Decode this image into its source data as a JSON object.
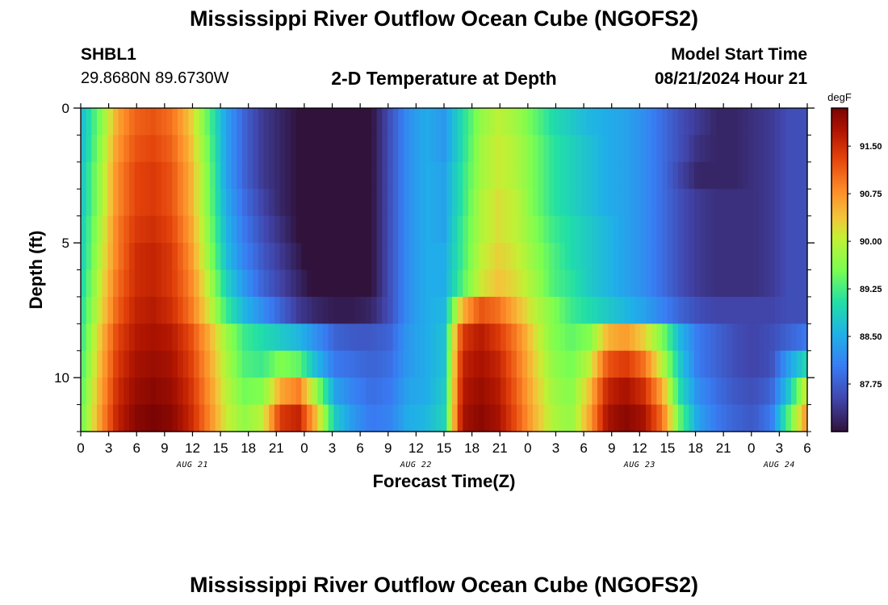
{
  "header": {
    "title": "Mississippi River Outflow Ocean Cube (NGOFS2)",
    "station_id": "SHBL1",
    "station_coords": "29.8680N  89.6730W",
    "subtitle": "2-D Temperature at Depth",
    "model_start_label": "Model Start Time",
    "model_start_value": "08/21/2024 Hour 21"
  },
  "footer": {
    "title": "Mississippi River Outflow Ocean Cube (NGOFS2)"
  },
  "chart_data": {
    "type": "heatmap",
    "xlabel": "Forecast Time(Z)",
    "ylabel": "Depth (ft)",
    "x_ticks": [
      "0",
      "3",
      "6",
      "9",
      "12",
      "15",
      "18",
      "21",
      "0",
      "3",
      "6",
      "9",
      "12",
      "15",
      "18",
      "21",
      "0",
      "3",
      "6",
      "9",
      "12",
      "15",
      "18",
      "21",
      "0",
      "3",
      "6"
    ],
    "date_labels": [
      "AUG 21",
      "AUG 22",
      "AUG 23",
      "AUG 24"
    ],
    "x_range_hours": [
      0,
      78
    ],
    "y_ticks": [
      "0",
      "5",
      "10"
    ],
    "y_range": [
      0,
      12
    ],
    "colorbar": {
      "unit": "degF",
      "ticks": [
        "91.50",
        "90.75",
        "90.00",
        "89.25",
        "88.50",
        "87.75"
      ],
      "range": [
        87.0,
        92.1
      ]
    },
    "layers": [
      {
        "depth_ft": 0.5,
        "values": [
          88.6,
          89.5,
          90.6,
          91.1,
          91.2,
          91.0,
          90.4,
          89.4,
          88.4,
          87.8,
          87.4,
          87.2,
          87.0,
          86.7,
          86.6,
          86.7,
          87.0,
          87.6,
          88.2,
          88.5,
          88.3,
          89.0,
          89.7,
          90.0,
          89.8,
          89.4,
          89.0,
          88.8,
          88.6,
          88.5,
          88.4,
          88.2,
          87.9,
          87.6,
          87.4,
          87.2,
          87.2,
          87.3,
          87.4,
          87.6,
          87.6
        ]
      },
      {
        "depth_ft": 1.5,
        "values": [
          88.6,
          89.6,
          90.7,
          91.2,
          91.3,
          91.1,
          90.5,
          89.5,
          88.4,
          87.8,
          87.4,
          87.2,
          87.0,
          86.7,
          86.6,
          86.7,
          87.0,
          87.6,
          88.2,
          88.5,
          88.3,
          89.0,
          89.8,
          90.1,
          89.9,
          89.5,
          89.1,
          88.9,
          88.7,
          88.5,
          88.4,
          88.2,
          87.9,
          87.6,
          87.3,
          87.2,
          87.2,
          87.3,
          87.4,
          87.6,
          87.6
        ]
      },
      {
        "depth_ft": 2.5,
        "values": [
          88.7,
          89.7,
          90.8,
          91.3,
          91.4,
          91.2,
          90.6,
          89.6,
          88.4,
          87.8,
          87.4,
          87.2,
          87.0,
          86.7,
          86.6,
          86.7,
          87.0,
          87.6,
          88.2,
          88.5,
          88.4,
          89.1,
          89.8,
          90.1,
          89.9,
          89.5,
          89.1,
          88.9,
          88.7,
          88.5,
          88.4,
          88.2,
          87.9,
          87.5,
          87.2,
          87.2,
          87.2,
          87.3,
          87.4,
          87.6,
          87.6
        ]
      },
      {
        "depth_ft": 3.5,
        "values": [
          88.7,
          89.7,
          90.8,
          91.3,
          91.4,
          91.2,
          90.6,
          89.6,
          88.5,
          87.9,
          87.5,
          87.2,
          87.0,
          86.8,
          86.6,
          86.7,
          87.0,
          87.6,
          88.2,
          88.5,
          88.4,
          89.1,
          89.9,
          90.2,
          90.0,
          89.5,
          89.1,
          88.9,
          88.7,
          88.5,
          88.4,
          88.2,
          87.9,
          87.6,
          87.4,
          87.3,
          87.3,
          87.3,
          87.4,
          87.6,
          87.6
        ]
      },
      {
        "depth_ft": 4.5,
        "values": [
          88.8,
          89.8,
          90.9,
          91.4,
          91.5,
          91.3,
          90.7,
          89.7,
          88.6,
          88.0,
          87.6,
          87.3,
          87.0,
          86.8,
          86.6,
          86.7,
          87.0,
          87.6,
          88.2,
          88.5,
          88.4,
          89.2,
          89.9,
          90.2,
          90.0,
          89.6,
          89.2,
          89.0,
          88.8,
          88.6,
          88.4,
          88.2,
          87.9,
          87.6,
          87.4,
          87.3,
          87.3,
          87.3,
          87.4,
          87.6,
          87.6
        ]
      },
      {
        "depth_ft": 5.5,
        "values": [
          88.8,
          89.9,
          90.9,
          91.5,
          91.6,
          91.4,
          90.8,
          89.8,
          88.7,
          88.1,
          87.7,
          87.4,
          87.1,
          86.8,
          86.6,
          86.7,
          87.0,
          87.6,
          88.2,
          88.5,
          88.5,
          89.2,
          90.0,
          90.3,
          90.1,
          89.7,
          89.3,
          89.0,
          88.8,
          88.6,
          88.4,
          88.2,
          87.9,
          87.6,
          87.4,
          87.3,
          87.3,
          87.3,
          87.4,
          87.6,
          87.6
        ]
      },
      {
        "depth_ft": 6.5,
        "values": [
          88.9,
          90.0,
          91.0,
          91.5,
          91.6,
          91.4,
          90.9,
          90.0,
          88.9,
          88.3,
          87.8,
          87.5,
          87.2,
          86.9,
          86.7,
          86.8,
          87.0,
          87.6,
          88.2,
          88.5,
          88.5,
          89.3,
          90.1,
          90.4,
          90.2,
          89.8,
          89.3,
          89.1,
          88.8,
          88.6,
          88.4,
          88.2,
          87.9,
          87.6,
          87.4,
          87.3,
          87.3,
          87.3,
          87.4,
          87.6,
          87.6
        ]
      },
      {
        "depth_ft": 7.5,
        "values": [
          89.0,
          90.1,
          91.1,
          91.6,
          91.7,
          91.5,
          91.0,
          90.2,
          89.2,
          88.6,
          88.2,
          87.8,
          87.4,
          87.2,
          87.1,
          87.1,
          87.2,
          87.6,
          88.2,
          88.5,
          88.6,
          90.5,
          91.2,
          91.0,
          90.5,
          90.0,
          89.6,
          89.2,
          89.0,
          88.8,
          88.6,
          88.4,
          88.1,
          87.8,
          87.6,
          87.5,
          87.5,
          87.5,
          87.5,
          87.6,
          87.6
        ]
      },
      {
        "depth_ft": 8.5,
        "values": [
          89.1,
          90.3,
          91.3,
          91.7,
          91.8,
          91.7,
          91.3,
          90.6,
          89.8,
          89.2,
          89.0,
          88.8,
          88.6,
          88.2,
          87.8,
          87.7,
          87.7,
          87.8,
          88.3,
          88.5,
          88.7,
          91.4,
          91.7,
          91.4,
          90.9,
          90.2,
          89.6,
          89.4,
          89.6,
          90.5,
          90.7,
          90.3,
          89.6,
          88.6,
          88.0,
          87.8,
          87.6,
          87.5,
          87.6,
          87.8,
          88.0
        ]
      },
      {
        "depth_ft": 9.5,
        "values": [
          89.2,
          90.4,
          91.4,
          91.8,
          91.9,
          91.8,
          91.4,
          90.7,
          89.9,
          89.3,
          89.2,
          89.6,
          89.4,
          88.6,
          88.0,
          87.9,
          87.8,
          87.9,
          88.3,
          88.5,
          88.7,
          91.6,
          91.8,
          91.6,
          91.0,
          90.3,
          89.7,
          89.5,
          90.0,
          91.2,
          91.4,
          91.0,
          90.0,
          88.8,
          88.0,
          87.8,
          87.6,
          87.5,
          87.6,
          88.4,
          89.0
        ]
      },
      {
        "depth_ft": 10.5,
        "values": [
          89.3,
          90.5,
          91.5,
          91.9,
          92.0,
          91.9,
          91.5,
          90.8,
          90.0,
          89.5,
          89.6,
          90.6,
          90.9,
          89.7,
          88.4,
          88.1,
          87.9,
          88.0,
          88.4,
          88.5,
          88.8,
          91.7,
          91.9,
          91.7,
          91.1,
          90.4,
          89.8,
          89.6,
          90.4,
          91.6,
          91.8,
          91.5,
          90.6,
          89.0,
          88.2,
          87.9,
          87.7,
          87.6,
          87.8,
          88.8,
          90.2
        ]
      },
      {
        "depth_ft": 11.5,
        "values": [
          89.4,
          90.6,
          91.6,
          92.0,
          92.1,
          92.0,
          91.6,
          90.9,
          90.1,
          89.7,
          90.0,
          91.4,
          91.6,
          90.4,
          88.8,
          88.3,
          88.0,
          88.1,
          88.5,
          88.6,
          88.9,
          91.8,
          92.0,
          91.8,
          91.2,
          90.5,
          89.9,
          89.7,
          90.6,
          91.8,
          92.0,
          91.8,
          91.0,
          89.4,
          88.4,
          88.0,
          87.8,
          87.7,
          88.0,
          89.4,
          90.8
        ]
      }
    ]
  }
}
